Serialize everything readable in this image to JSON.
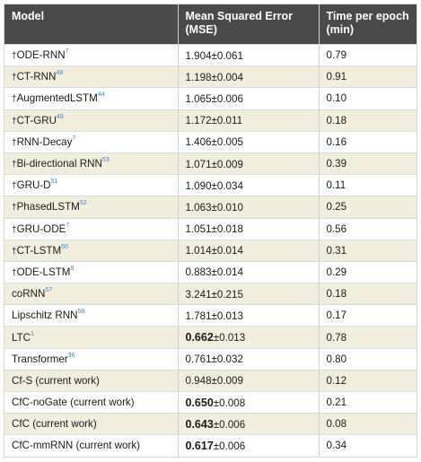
{
  "headers": {
    "model": "Model",
    "mse_line1": "Mean Squared Error",
    "mse_line2": "(MSE)",
    "time_line1": "Time per epoch",
    "time_line2": "(min)"
  },
  "rows": [
    {
      "dagger": "†",
      "name": "ODE-RNN",
      "ref": "7",
      "mse_bold": "",
      "mse": "1.904±0.061",
      "time": "0.79"
    },
    {
      "dagger": "†",
      "name": "CT-RNN",
      "ref": "48",
      "mse_bold": "",
      "mse": "1.198±0.004",
      "time": "0.91"
    },
    {
      "dagger": "†",
      "name": "AugmentedLSTM",
      "ref": "44",
      "mse_bold": "",
      "mse": "1.065±0.006",
      "time": "0.10"
    },
    {
      "dagger": "†",
      "name": "CT-GRU",
      "ref": "49",
      "mse_bold": "",
      "mse": "1.172±0.011",
      "time": "0.18"
    },
    {
      "dagger": "†",
      "name": "RNN-Decay",
      "ref": "7",
      "mse_bold": "",
      "mse": "1.406±0.005",
      "time": "0.16"
    },
    {
      "dagger": "†",
      "name": "Bi-directional RNN",
      "ref": "53",
      "mse_bold": "",
      "mse": "1.071±0.009",
      "time": "0.39"
    },
    {
      "dagger": "†",
      "name": "GRU-D",
      "ref": "51",
      "mse_bold": "",
      "mse": "1.090±0.034",
      "time": "0.11"
    },
    {
      "dagger": "†",
      "name": "PhasedLSTM",
      "ref": "52",
      "mse_bold": "",
      "mse": "1.063±0.010",
      "time": "0.25"
    },
    {
      "dagger": "†",
      "name": "GRU-ODE",
      "ref": "7",
      "mse_bold": "",
      "mse": "1.051±0.018",
      "time": "0.56"
    },
    {
      "dagger": "†",
      "name": "CT-LSTM",
      "ref": "50",
      "mse_bold": "",
      "mse": "1.014±0.014",
      "time": "0.31"
    },
    {
      "dagger": "†",
      "name": "ODE-LSTM",
      "ref": "9",
      "mse_bold": "",
      "mse": "0.883±0.014",
      "time": "0.29"
    },
    {
      "dagger": "",
      "name": "coRNN",
      "ref": "57",
      "mse_bold": "",
      "mse": "3.241±0.215",
      "time": "0.18"
    },
    {
      "dagger": "",
      "name": "Lipschitz RNN",
      "ref": "58",
      "mse_bold": "",
      "mse": "1.781±0.013",
      "time": "0.17"
    },
    {
      "dagger": "",
      "name": "LTC",
      "ref": "1",
      "mse_bold": "0.662",
      "mse": "±0.013",
      "time": "0.78"
    },
    {
      "dagger": "",
      "name": "Transformer",
      "ref": "36",
      "mse_bold": "",
      "mse": "0.761±0.032",
      "time": "0.80"
    },
    {
      "dagger": "",
      "name": "Cf-S (current work)",
      "ref": "",
      "mse_bold": "",
      "mse": "0.948±0.009",
      "time": "0.12"
    },
    {
      "dagger": "",
      "name": "CfC-noGate (current work)",
      "ref": "",
      "mse_bold": "0.650",
      "mse": "±0.008",
      "time": "0.21"
    },
    {
      "dagger": "",
      "name": "CfC (current work)",
      "ref": "",
      "mse_bold": "0.643",
      "mse": "±0.006",
      "time": "0.08"
    },
    {
      "dagger": "",
      "name": "CfC-mmRNN (current work)",
      "ref": "",
      "mse_bold": "0.617",
      "mse": "±0.006",
      "time": "0.34"
    }
  ]
}
